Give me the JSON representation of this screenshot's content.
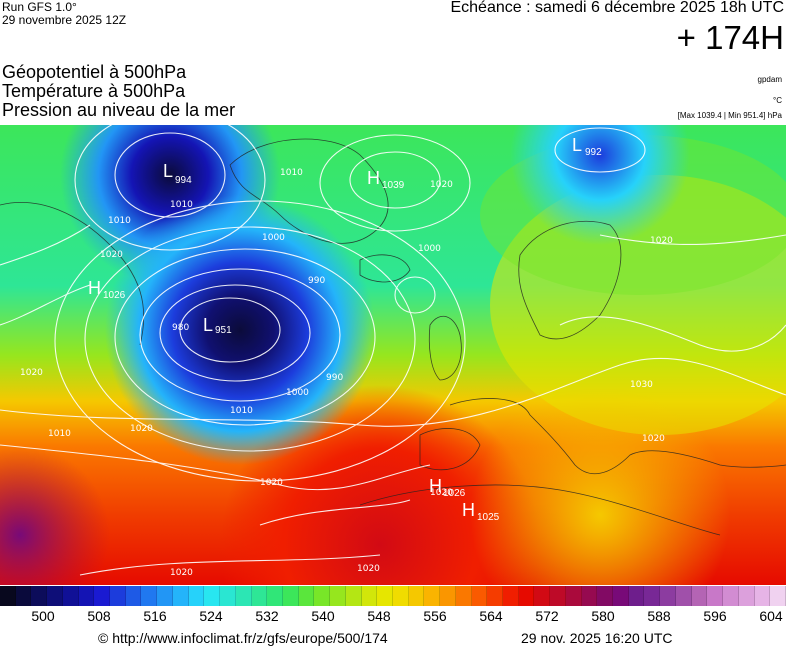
{
  "header": {
    "run_label": "Run GFS 1.0°",
    "run_date": "29 novembre 2025 12Z",
    "valid_time": "Echéance : samedi 6 décembre 2025 18h UTC",
    "lead_time": "+ 174H"
  },
  "layers": [
    "Géopotentiel à 500hPa",
    "Température à 500hPa",
    "Pression au niveau de la mer"
  ],
  "units": {
    "geopotential": "gpdam",
    "temperature": "°C",
    "pressure_range": "[Max 1039.4 | Min 951.4] hPa"
  },
  "pressure_centers": [
    {
      "type": "L",
      "value": "994",
      "name": "low-greenland-west"
    },
    {
      "type": "L",
      "value": "992",
      "name": "low-norwegian-sea"
    },
    {
      "type": "H",
      "value": "1039",
      "name": "high-greenland"
    },
    {
      "type": "H",
      "value": "1026",
      "name": "high-canada"
    },
    {
      "type": "L",
      "value": "951",
      "name": "low-north-atlantic"
    },
    {
      "type": "H",
      "value": "1026",
      "name": "high-north-africa-west"
    },
    {
      "type": "H",
      "value": "1025",
      "name": "high-north-africa-east"
    }
  ],
  "isobar_labels": [
    "1010",
    "1010",
    "1020",
    "1010",
    "1000",
    "1020",
    "1000",
    "990",
    "1020",
    "1030",
    "990",
    "1000",
    "1010",
    "1020",
    "1010",
    "1020",
    "1020",
    "1020",
    "1020",
    "1020",
    "1020",
    "980"
  ],
  "colorbar": {
    "labels": [
      "500",
      "508",
      "516",
      "524",
      "532",
      "540",
      "548",
      "556",
      "564",
      "572",
      "580",
      "588",
      "596",
      "604"
    ],
    "colors": [
      "#08081e",
      "#0a0a3c",
      "#0c0c5a",
      "#0e0e78",
      "#101096",
      "#1414b4",
      "#1a1ad2",
      "#1c3cdc",
      "#1e5ae6",
      "#2078f0",
      "#2296f5",
      "#24b4fa",
      "#26d2fa",
      "#28e6f0",
      "#2ae6d2",
      "#2ce6b4",
      "#2ee696",
      "#30e678",
      "#3ce65a",
      "#5ae63c",
      "#78e628",
      "#96e61e",
      "#b4e614",
      "#d2e60a",
      "#e6e600",
      "#f0dc00",
      "#f5c800",
      "#fab400",
      "#fa9600",
      "#fa7800",
      "#fa5a00",
      "#f53c00",
      "#f01e00",
      "#e60a00",
      "#d20a14",
      "#be0a28",
      "#aa0a3c",
      "#960a50",
      "#820a64",
      "#780a78",
      "#6e1e8c",
      "#782896",
      "#8c3ca0",
      "#a050aa",
      "#b464b4",
      "#c878c8",
      "#d28cd2",
      "#dca0dc",
      "#e6b4e6",
      "#f0d2f0"
    ]
  },
  "footer": {
    "url": "© http://www.infoclimat.fr/z/gfs/europe/500/174",
    "generated": "29 nov. 2025 16:20 UTC"
  }
}
